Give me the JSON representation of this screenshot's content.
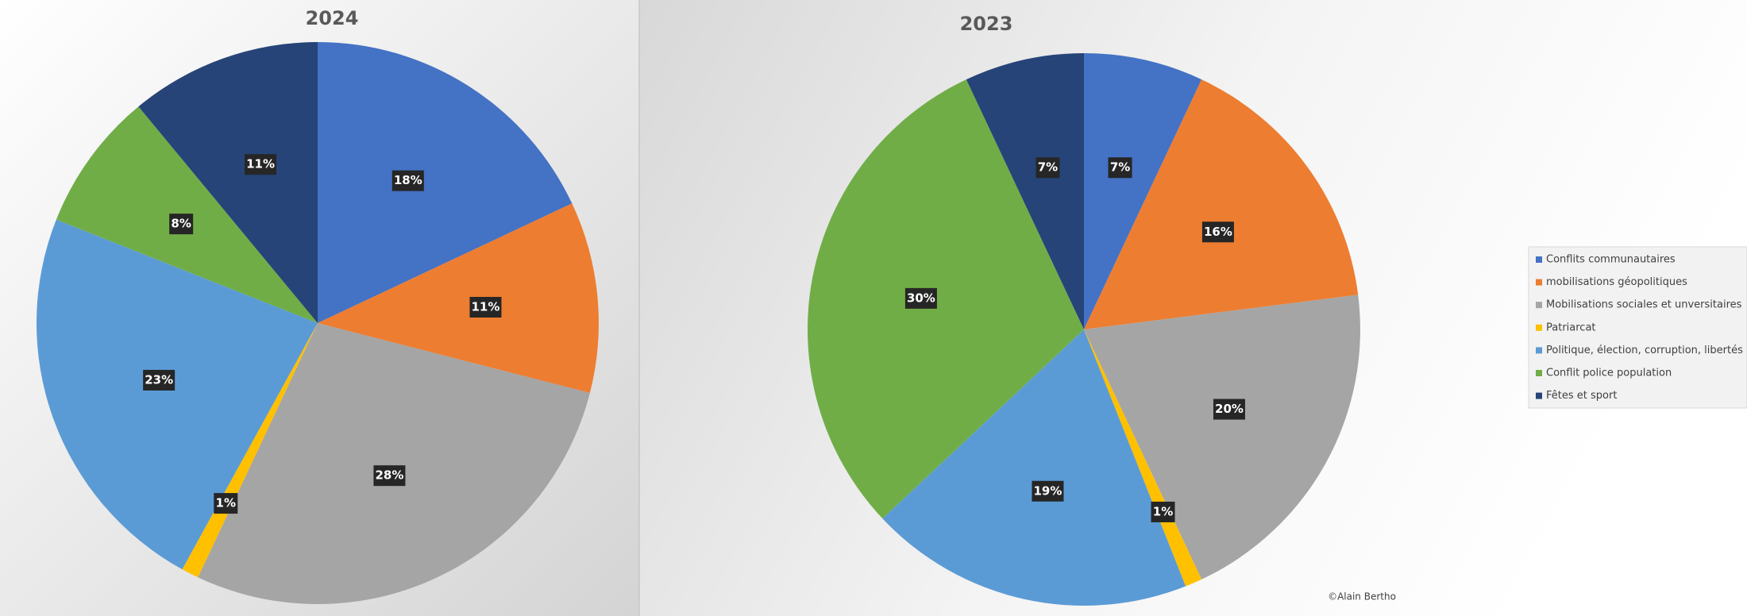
{
  "chart_data": [
    {
      "type": "pie",
      "title": "2024",
      "values": [
        18,
        11,
        28,
        1,
        23,
        8,
        11
      ],
      "value_labels": [
        "18%",
        "11%",
        "28%",
        "1%",
        "23%",
        "8%",
        "11%"
      ]
    },
    {
      "type": "pie",
      "title": "2023",
      "values": [
        7,
        16,
        20,
        1,
        19,
        30,
        7
      ],
      "value_labels": [
        "7%",
        "16%",
        "20%",
        "1%",
        "19%",
        "30%",
        "7%"
      ]
    }
  ],
  "legend": {
    "position": "right",
    "entries": [
      {
        "label": "Conflits communautaires",
        "color": "#4472c4"
      },
      {
        "label": "mobilisations géopolitiques",
        "color": "#ed7d31"
      },
      {
        "label": "Mobilisations sociales et unversitaires",
        "color": "#a5a5a5"
      },
      {
        "label": "Patriarcat",
        "color": "#ffc000"
      },
      {
        "label": "Politique, élection, corruption, libertés",
        "color": "#5b9bd5"
      },
      {
        "label": "Conflit police population",
        "color": "#70ad47"
      },
      {
        "label": "Fêtes et sport",
        "color": "#264478"
      }
    ]
  },
  "copyright": "©Alain Bertho"
}
